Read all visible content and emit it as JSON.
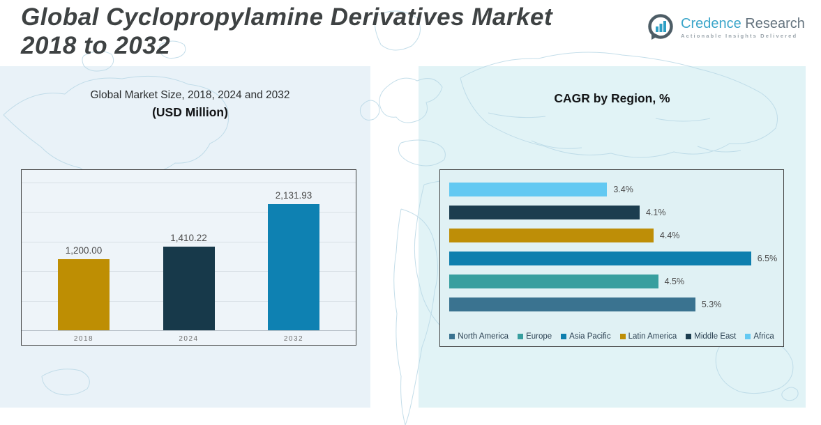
{
  "header": {
    "title_line1": "Global Cyclopropylamine Derivatives Market",
    "title_line2": "2018 to 2032",
    "logo": {
      "brand_primary": "Credence",
      "brand_secondary": "Research",
      "tagline": "Actionable Insights Delivered",
      "brand_primary_color": "#3aa5c9",
      "brand_secondary_color": "#64737e",
      "icon": "bar-chart-speech-bubble"
    }
  },
  "chart_data": [
    {
      "type": "bar",
      "title": "Global Market Size, 2018, 2024 and 2032",
      "subtitle": "(USD Million)",
      "categories": [
        "2018",
        "2024",
        "2032"
      ],
      "values": [
        1200.0,
        1410.22,
        2131.93
      ],
      "value_labels": [
        "1,200.00",
        "1,410.22",
        "2,131.93"
      ],
      "colors": [
        "#be8e03",
        "#17394a",
        "#0e81b2"
      ],
      "ylim": [
        0,
        2500
      ],
      "gridline_step": 500,
      "grid": true,
      "legend_position": "none"
    },
    {
      "type": "bar",
      "orientation": "horizontal",
      "title": "CAGR by Region, %",
      "categories": [
        "Africa",
        "Middle East",
        "Latin America",
        "Asia Pacific",
        "Europe",
        "North America"
      ],
      "values": [
        3.4,
        4.1,
        4.4,
        6.5,
        4.5,
        5.3
      ],
      "value_labels": [
        "3.4%",
        "4.1%",
        "4.4%",
        "6.5%",
        "4.5%",
        "5.3%"
      ],
      "colors": [
        "#63c9f2",
        "#1c3d4f",
        "#be8e07",
        "#0e7fae",
        "#389f9f",
        "#3a7390"
      ],
      "xlim": [
        0,
        7
      ],
      "grid": false,
      "legend_position": "bottom",
      "legend_items": [
        "North America",
        "Europe",
        "Asia Pacific",
        "Latin America",
        "Middle East",
        "Africa"
      ]
    }
  ]
}
